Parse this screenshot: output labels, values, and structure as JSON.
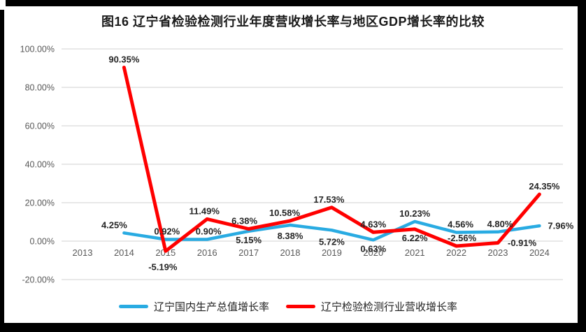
{
  "colors": {
    "grid": "#d9d9d9",
    "axis_text": "#595959",
    "label_text": "#262626",
    "gdp_line": "#29abe2",
    "industry_line": "#ff0000",
    "frame": "#000000"
  },
  "chart_data": {
    "type": "line",
    "title": "图16 辽宁省检验检测行业年度营收增长率与地区GDP增长率的比较",
    "xlabel": "",
    "ylabel": "",
    "grid": true,
    "legend_position": "bottom",
    "categories": [
      "2013",
      "2014",
      "2015",
      "2016",
      "2017",
      "2018",
      "2019",
      "2020",
      "2021",
      "2022",
      "2023",
      "2024"
    ],
    "y_axis": {
      "min": -20,
      "max": 100,
      "step": 20,
      "ticks": [
        {
          "v": 100,
          "label": "100.00%"
        },
        {
          "v": 80,
          "label": "80.00%"
        },
        {
          "v": 60,
          "label": "60.00%"
        },
        {
          "v": 40,
          "label": "40.00%"
        },
        {
          "v": 20,
          "label": "20.00%"
        },
        {
          "v": 0,
          "label": "0.00%"
        },
        {
          "v": -20,
          "label": "-20.00%"
        }
      ]
    },
    "series": [
      {
        "id": "gdp",
        "name": "辽宁国内生产总值增长率",
        "color": "#29abe2",
        "stroke_width": 4.5,
        "values": [
          null,
          4.25,
          0.92,
          0.9,
          5.15,
          8.38,
          5.72,
          0.63,
          10.23,
          4.56,
          4.8,
          7.96
        ],
        "labels": [
          null,
          "4.25%",
          "0.92%",
          "0.90%",
          "5.15%",
          "8.38%",
          "5.72%",
          "0.63%",
          "10.23%",
          "4.56%",
          "4.80%",
          "7.96%"
        ],
        "label_pos": [
          null,
          "above",
          "above",
          "above",
          "below",
          "below",
          "below",
          "below",
          "above",
          "above",
          "above",
          "right"
        ],
        "label_dx": [
          0,
          -14,
          2,
          2,
          0,
          0,
          0,
          0,
          0,
          6,
          3,
          0
        ],
        "label_dy": [
          0,
          0,
          0,
          0,
          0,
          3,
          4,
          0,
          0,
          0,
          0,
          0
        ]
      },
      {
        "id": "industry",
        "name": "辽宁检验检测行业营收增长率",
        "color": "#ff0000",
        "stroke_width": 5,
        "values": [
          null,
          90.35,
          -5.19,
          11.49,
          6.38,
          10.58,
          17.53,
          4.63,
          6.22,
          -2.56,
          -0.91,
          24.35
        ],
        "labels": [
          null,
          "90.35%",
          "-5.19%",
          "11.49%",
          "6.38%",
          "10.58%",
          "17.53%",
          "4.63%",
          "6.22%",
          "-2.56%",
          "-0.91%",
          "24.35%"
        ],
        "label_pos": [
          null,
          "above",
          "below",
          "above",
          "above",
          "above",
          "above",
          "above",
          "below",
          "above",
          "right",
          "above"
        ],
        "label_dx": [
          0,
          0,
          -4,
          -4,
          -6,
          -8,
          -4,
          0,
          0,
          8,
          2,
          7
        ],
        "label_dy": [
          0,
          0,
          10,
          0,
          0,
          0,
          0,
          0,
          0,
          0,
          0,
          0
        ]
      }
    ]
  }
}
